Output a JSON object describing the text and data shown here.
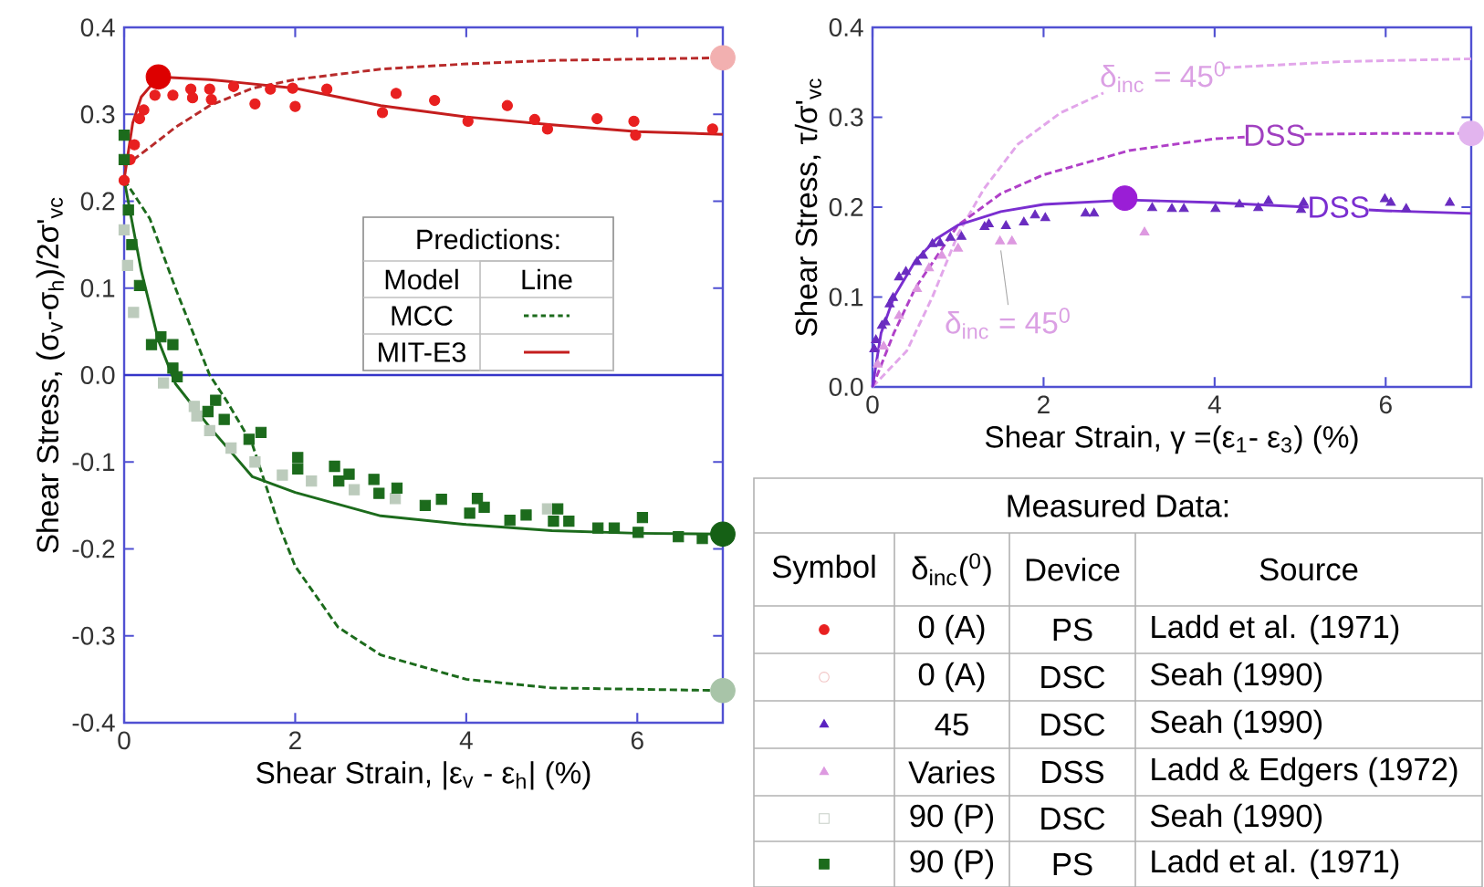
{
  "chart_data": [
    {
      "type": "scatter",
      "xlabel": "Shear Strain, |ε$_{v}$ - ε$_{h}$| (%)",
      "ylabel": "Shear Stress, (σ$_{v}$-σ$_{h}$)/2σ'$_{vc}$",
      "xlim": [
        0,
        7
      ],
      "ylim": [
        -0.4,
        0.4
      ],
      "xticks": [
        0,
        2,
        4,
        6
      ],
      "yticks": [
        -0.4,
        -0.3,
        -0.2,
        -0.1,
        {
          "value": 0,
          "label": "0.0"
        },
        0.1,
        0.2,
        0.3,
        0.4
      ],
      "ref_lines": [
        {
          "axis": "y",
          "value": 0,
          "color": "#3535c8"
        }
      ],
      "annotations": [
        "Predictions:",
        "Model",
        "Line",
        "MCC",
        "MIT-E3"
      ],
      "series": [
        {
          "type": "scatter",
          "marker": "circle",
          "color": "#e82020",
          "x": [
            0,
            0.07,
            0.12,
            0.18,
            0.23,
            0.36,
            0.41,
            0.57,
            0.78,
            0.8,
            1.0,
            1.02,
            1.28,
            1.53,
            1.71,
            1.97,
            2.0,
            2.37,
            3.02,
            3.18,
            3.63,
            4.02,
            4.48,
            4.8,
            4.95,
            5.53,
            5.96,
            5.98,
            6.88
          ],
          "values": [
            0.224,
            0.248,
            0.265,
            0.295,
            0.305,
            0.322,
            null,
            0.322,
            0.329,
            0.319,
            0.329,
            0.317,
            0.332,
            0.312,
            0.329,
            0.33,
            0.309,
            0.329,
            0.302,
            0.324,
            0.316,
            0.292,
            0.31,
            0.294,
            0.283,
            0.295,
            0.292,
            0.276,
            0.283
          ]
        },
        {
          "type": "line",
          "line_style": "solid",
          "color": "#c41e1e",
          "x": [
            0,
            0.1,
            0.2,
            0.4,
            1,
            2,
            3,
            4,
            5,
            6,
            7
          ],
          "values": [
            0.225,
            0.29,
            0.32,
            0.343,
            0.34,
            0.33,
            0.31,
            0.297,
            0.288,
            0.28,
            0.277
          ]
        },
        {
          "type": "line",
          "line_style": "dashed",
          "color": "#b82a2a",
          "x": [
            0,
            0.3,
            0.6,
            1,
            1.5,
            2,
            3,
            4,
            5,
            7
          ],
          "values": [
            0.24,
            0.262,
            0.285,
            0.31,
            0.33,
            0.34,
            0.352,
            0.358,
            0.362,
            0.365
          ]
        },
        {
          "type": "bubble",
          "color": "#dd0000",
          "x": [
            0.4
          ],
          "values": [
            0.343
          ],
          "sizes": [
            1
          ]
        },
        {
          "type": "bubble",
          "color": "#f2b0b0",
          "x": [
            7
          ],
          "values": [
            0.365
          ],
          "sizes": [
            1
          ]
        },
        {
          "type": "scatter",
          "marker": "square",
          "color": "#bccbbc",
          "x": [
            0,
            0.04,
            0.11,
            0.46,
            0.82,
            0.85,
            1.0,
            1.25,
            1.53,
            1.85,
            2.19,
            2.69,
            3.17,
            4.95
          ],
          "values": [
            0.167,
            0.126,
            0.072,
            -0.009,
            -0.036,
            -0.047,
            -0.064,
            -0.084,
            -0.1,
            -0.115,
            -0.122,
            -0.132,
            -0.142,
            -0.154
          ]
        },
        {
          "type": "scatter",
          "marker": "square",
          "color": "#1c6b1c",
          "x": [
            0,
            0,
            0.05,
            0.09,
            0.14,
            0.18,
            0.32,
            0.43,
            0.57,
            0.57,
            0.62,
            0.98,
            1.07,
            1.17,
            1.46,
            1.6,
            2.03,
            2.03,
            2.46,
            2.51,
            2.63,
            2.92,
            2.98,
            3.19,
            3.52,
            3.71,
            4.04,
            4.13,
            4.21,
            4.51,
            4.7,
            5.02,
            5.07,
            5.2,
            5.54,
            5.73,
            6.01,
            6.06,
            6.48,
            6.76
          ],
          "values": [
            0.276,
            0.248,
            0.19,
            0.15,
            null,
            0.103,
            0.035,
            0.044,
            0.035,
            0.008,
            -0.002,
            -0.042,
            -0.029,
            -0.051,
            -0.074,
            -0.066,
            -0.095,
            -0.108,
            -0.105,
            -0.122,
            -0.114,
            -0.12,
            -0.136,
            -0.13,
            -0.15,
            -0.143,
            -0.159,
            -0.142,
            -0.152,
            -0.167,
            -0.161,
            -0.168,
            -0.154,
            -0.168,
            -0.176,
            -0.176,
            -0.181,
            -0.164,
            -0.186,
            -0.188
          ]
        },
        {
          "type": "line",
          "line_style": "solid",
          "color": "#1c6b1c",
          "x": [
            0,
            0.2,
            0.4,
            0.6,
            1,
            1.5,
            2,
            3,
            4,
            5,
            6,
            7
          ],
          "values": [
            0.225,
            0.12,
            0.04,
            -0.01,
            -0.06,
            -0.117,
            -0.135,
            -0.162,
            -0.172,
            -0.179,
            -0.182,
            -0.183
          ]
        },
        {
          "type": "line",
          "line_style": "dashed",
          "color": "#1c6b1c",
          "x": [
            0,
            0.3,
            0.6,
            0.8,
            1.0,
            1.2,
            1.5,
            1.8,
            2,
            2.5,
            3,
            4,
            5,
            7
          ],
          "values": [
            0.225,
            0.18,
            0.1,
            0.05,
            0.0,
            -0.03,
            -0.08,
            -0.17,
            -0.22,
            -0.29,
            -0.322,
            -0.35,
            -0.36,
            -0.363
          ]
        },
        {
          "type": "bubble",
          "color": "#156015",
          "x": [
            7
          ],
          "values": [
            -0.183
          ],
          "sizes": [
            1
          ]
        },
        {
          "type": "bubble",
          "color": "#a8c4a8",
          "x": [
            7
          ],
          "values": [
            -0.363
          ],
          "sizes": [
            1
          ]
        }
      ]
    },
    {
      "type": "scatter",
      "xlabel": "Shear Strain, γ =(ε$_{1}$- ε$_{3}$) (%)",
      "ylabel": "Shear Stress, τ/σ'$_{vc}$",
      "xlim": [
        0,
        7
      ],
      "ylim": [
        0,
        0.4
      ],
      "xticks": [
        0,
        2,
        4,
        6
      ],
      "yticks": [
        {
          "value": 0,
          "label": "0.0"
        },
        0.1,
        0.2,
        0.3,
        0.4
      ],
      "annotations": [
        "δ$_{inc}$ = 45$^{0}$",
        "DSS",
        "DSS",
        {
          "text": "δ$_{inc}$ = 45$^{0}$",
          "x": 1.5,
          "y": 0.16
        }
      ],
      "series": [
        {
          "type": "line",
          "line_style": "dashed",
          "color": "#e2a6ea",
          "x": [
            0,
            0.4,
            0.7,
            1,
            1.3,
            1.7,
            2.2,
            2.7,
            3.4,
            4.1,
            5.5,
            7
          ],
          "values": [
            0,
            0.04,
            0.1,
            0.17,
            0.22,
            0.27,
            0.305,
            0.327,
            null,
            0.355,
            0.362,
            0.365
          ]
        },
        {
          "type": "line",
          "line_style": "dashed",
          "color": "#b040c8",
          "x": [
            0,
            0.25,
            0.5,
            1,
            1.5,
            2,
            3,
            4,
            4.35,
            4.7,
            5.05,
            6,
            7
          ],
          "values": [
            0,
            0.06,
            0.11,
            0.18,
            0.215,
            0.236,
            0.263,
            0.276,
            0.278,
            null,
            0.281,
            0.282,
            0.282
          ]
        },
        {
          "type": "line",
          "line_style": "solid",
          "color": "#7a2ed0",
          "x": [
            0,
            0.1,
            0.25,
            0.5,
            0.75,
            1,
            1.5,
            2,
            3,
            4,
            5.1,
            5.45,
            5.8,
            6,
            7
          ],
          "values": [
            0,
            0.06,
            0.1,
            0.14,
            0.165,
            0.18,
            0.195,
            0.203,
            0.208,
            0.205,
            0.2,
            null,
            0.197,
            0.196,
            0.193
          ]
        },
        {
          "type": "scatter",
          "marker": "triangle",
          "color": "#6a2cc0",
          "x": [
            0.02,
            0.04,
            0.11,
            0.15,
            0.2,
            0.24,
            0.31,
            0.39,
            0.52,
            0.59,
            0.7,
            0.79,
            0.91,
            1.04,
            1.31,
            1.36,
            1.56,
            1.77,
            1.9,
            2.02,
            2.49,
            2.59,
            3.27,
            3.5,
            3.64,
            4.01,
            4.29,
            4.51,
            4.63,
            5.01,
            5.04,
            5.99,
            6.06,
            6.24,
            6.75
          ],
          "values": [
            0.042,
            0.052,
            0.068,
            0.072,
            0.092,
            0.099,
            0.122,
            0.128,
            0.139,
            0.146,
            0.159,
            0.16,
            0.166,
            0.167,
            0.178,
            0.181,
            0.179,
            0.183,
            0.191,
            0.188,
            0.193,
            0.193,
            0.199,
            0.198,
            0.198,
            0.198,
            0.203,
            0.199,
            0.207,
            0.197,
            0.205,
            0.209,
            0.205,
            0.198,
            0.205
          ]
        },
        {
          "type": "scatter",
          "marker": "triangle",
          "color": "#dd99e0",
          "x": [
            0.06,
            0.13,
            0.31,
            0.52,
            0.66,
            0.81,
            1.0,
            1.49,
            1.63,
            3.18
          ],
          "values": [
            0.025,
            0.045,
            0.079,
            0.109,
            0.132,
            0.146,
            0.154,
            0.162,
            0.162,
            0.172
          ]
        },
        {
          "type": "bubble",
          "color": "#9a1ed6",
          "x": [
            2.95
          ],
          "values": [
            0.21
          ],
          "sizes": [
            1
          ]
        },
        {
          "type": "bubble",
          "color": "#e2b4ee",
          "x": [
            7
          ],
          "values": [
            0.282
          ],
          "sizes": [
            1
          ]
        }
      ]
    },
    {
      "type": "other",
      "title": "Measured Data:",
      "annotations": [
        "Symbol",
        "δ$_{inc}$($^{0}$)",
        "Device",
        "Source",
        "0 (A)",
        "PS",
        "Ladd et al. (1971)",
        "0 (A)",
        "DSC",
        "Seah (1990)",
        "45",
        "DSC",
        "Seah (1990)",
        "Varies",
        "DSS",
        "Ladd & Edgers (1972)",
        "90 (P)",
        "DSC",
        "Seah (1990)",
        "90 (P)",
        "PS",
        "Ladd et al. (1971)"
      ],
      "colors": [
        "#e82020",
        "#f2c4c4",
        "#5a22c0",
        "#dd99e0",
        "#c8d0c8",
        "#1c6b1c"
      ]
    }
  ]
}
